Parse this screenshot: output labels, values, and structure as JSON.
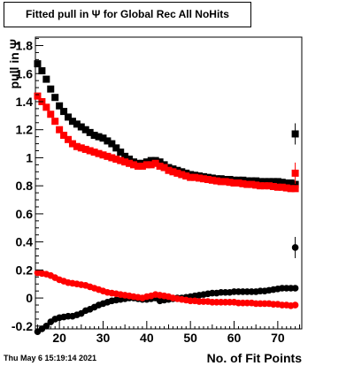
{
  "chart_data": {
    "type": "scatter",
    "title": "Fitted pull in  Ψ  for Global Rec All NoHits",
    "xlabel": "No. of Fit Points",
    "ylabel": "pull in  Ψ",
    "xlim": [
      14.5,
      75.5
    ],
    "ylim": [
      -0.22,
      1.86
    ],
    "xticks": [
      20,
      30,
      40,
      50,
      60,
      70
    ],
    "yticks": [
      -0.2,
      0,
      0.2,
      0.4,
      0.6,
      0.8,
      1,
      1.2,
      1.4,
      1.6,
      1.8
    ],
    "series": [
      {
        "color": "#000000",
        "marker": "square",
        "x": [
          15,
          16,
          17,
          18,
          19,
          20,
          21,
          22,
          23,
          24,
          25,
          26,
          27,
          28,
          29,
          30,
          31,
          32,
          33,
          34,
          35,
          36,
          37,
          38,
          39,
          40,
          41,
          42,
          43,
          44,
          45,
          46,
          47,
          48,
          49,
          50,
          51,
          52,
          53,
          54,
          55,
          56,
          57,
          58,
          59,
          60,
          61,
          62,
          63,
          64,
          65,
          66,
          67,
          68,
          69,
          70,
          71,
          72,
          73,
          74
        ],
        "y": [
          1.67,
          1.62,
          1.56,
          1.49,
          1.43,
          1.37,
          1.33,
          1.29,
          1.26,
          1.24,
          1.22,
          1.2,
          1.18,
          1.16,
          1.15,
          1.14,
          1.12,
          1.1,
          1.07,
          1.04,
          1.01,
          0.99,
          0.97,
          0.96,
          0.96,
          0.97,
          0.98,
          0.98,
          0.97,
          0.95,
          0.93,
          0.92,
          0.91,
          0.9,
          0.89,
          0.88,
          0.875,
          0.87,
          0.865,
          0.86,
          0.855,
          0.85,
          0.85,
          0.845,
          0.845,
          0.84,
          0.84,
          0.84,
          0.835,
          0.835,
          0.835,
          0.83,
          0.83,
          0.83,
          0.83,
          0.83,
          0.825,
          0.82,
          0.82,
          0.81
        ]
      },
      {
        "color": "#ff0000",
        "marker": "square",
        "x": [
          15,
          16,
          17,
          18,
          19,
          20,
          21,
          22,
          23,
          24,
          25,
          26,
          27,
          28,
          29,
          30,
          31,
          32,
          33,
          34,
          35,
          36,
          37,
          38,
          39,
          40,
          41,
          42,
          43,
          44,
          45,
          46,
          47,
          48,
          49,
          50,
          51,
          52,
          53,
          54,
          55,
          56,
          57,
          58,
          59,
          60,
          61,
          62,
          63,
          64,
          65,
          66,
          67,
          68,
          69,
          70,
          71,
          72,
          73,
          74
        ],
        "y": [
          1.44,
          1.4,
          1.36,
          1.31,
          1.26,
          1.2,
          1.16,
          1.13,
          1.1,
          1.08,
          1.07,
          1.06,
          1.05,
          1.04,
          1.03,
          1.02,
          1.01,
          1.0,
          0.99,
          0.98,
          0.97,
          0.96,
          0.95,
          0.94,
          0.94,
          0.95,
          0.95,
          0.96,
          0.94,
          0.93,
          0.91,
          0.9,
          0.89,
          0.88,
          0.87,
          0.86,
          0.86,
          0.855,
          0.85,
          0.845,
          0.84,
          0.835,
          0.83,
          0.83,
          0.825,
          0.82,
          0.82,
          0.815,
          0.81,
          0.81,
          0.805,
          0.8,
          0.8,
          0.8,
          0.795,
          0.79,
          0.79,
          0.785,
          0.78,
          0.78
        ]
      },
      {
        "color": "#000000",
        "marker": "circle",
        "x": [
          15,
          16,
          17,
          18,
          19,
          20,
          21,
          22,
          23,
          24,
          25,
          26,
          27,
          28,
          29,
          30,
          31,
          32,
          33,
          34,
          35,
          36,
          37,
          38,
          39,
          40,
          41,
          42,
          43,
          44,
          45,
          46,
          47,
          48,
          49,
          50,
          51,
          52,
          53,
          54,
          55,
          56,
          57,
          58,
          59,
          60,
          61,
          62,
          63,
          64,
          65,
          66,
          67,
          68,
          69,
          70,
          71,
          72,
          73,
          74
        ],
        "y": [
          -0.24,
          -0.22,
          -0.2,
          -0.17,
          -0.15,
          -0.14,
          -0.135,
          -0.13,
          -0.13,
          -0.12,
          -0.11,
          -0.09,
          -0.08,
          -0.065,
          -0.05,
          -0.04,
          -0.03,
          -0.02,
          -0.015,
          -0.01,
          -0.005,
          0,
          0.0,
          -0.005,
          -0.01,
          -0.01,
          -0.005,
          0.0,
          -0.02,
          -0.015,
          -0.01,
          -0.005,
          0.0,
          0.0,
          0.005,
          0.01,
          0.015,
          0.02,
          0.025,
          0.03,
          0.035,
          0.035,
          0.04,
          0.04,
          0.04,
          0.045,
          0.045,
          0.045,
          0.045,
          0.045,
          0.045,
          0.05,
          0.05,
          0.055,
          0.06,
          0.065,
          0.07,
          0.07,
          0.07,
          0.07
        ]
      },
      {
        "color": "#ff0000",
        "marker": "circle",
        "x": [
          15,
          16,
          17,
          18,
          19,
          20,
          21,
          22,
          23,
          24,
          25,
          26,
          27,
          28,
          29,
          30,
          31,
          32,
          33,
          34,
          35,
          36,
          37,
          38,
          39,
          40,
          41,
          42,
          43,
          44,
          45,
          46,
          47,
          48,
          49,
          50,
          51,
          52,
          53,
          54,
          55,
          56,
          57,
          58,
          59,
          60,
          61,
          62,
          63,
          64,
          65,
          66,
          67,
          68,
          69,
          70,
          71,
          72,
          73,
          74
        ],
        "y": [
          0.18,
          0.175,
          0.17,
          0.16,
          0.145,
          0.13,
          0.12,
          0.11,
          0.105,
          0.1,
          0.095,
          0.09,
          0.08,
          0.07,
          0.06,
          0.05,
          0.04,
          0.035,
          0.03,
          0.025,
          0.02,
          0.015,
          0.01,
          0.005,
          0.0,
          0.01,
          0.015,
          0.025,
          0.02,
          0.015,
          0.01,
          0.0,
          -0.005,
          -0.01,
          -0.015,
          -0.02,
          -0.02,
          -0.025,
          -0.025,
          -0.025,
          -0.03,
          -0.03,
          -0.03,
          -0.03,
          -0.03,
          -0.03,
          -0.035,
          -0.035,
          -0.035,
          -0.035,
          -0.04,
          -0.04,
          -0.04,
          -0.04,
          -0.045,
          -0.045,
          -0.05,
          -0.05,
          -0.055,
          -0.05
        ]
      }
    ],
    "overflow_points": [
      {
        "x": 74,
        "y": 1.17,
        "color": "#000000",
        "marker": "square"
      },
      {
        "x": 74,
        "y": 0.89,
        "color": "#ff0000",
        "marker": "square"
      },
      {
        "x": 74,
        "y": 0.36,
        "color": "#000000",
        "marker": "circle"
      }
    ]
  },
  "timestamp": "Thu May  6 15:19:14 2021"
}
